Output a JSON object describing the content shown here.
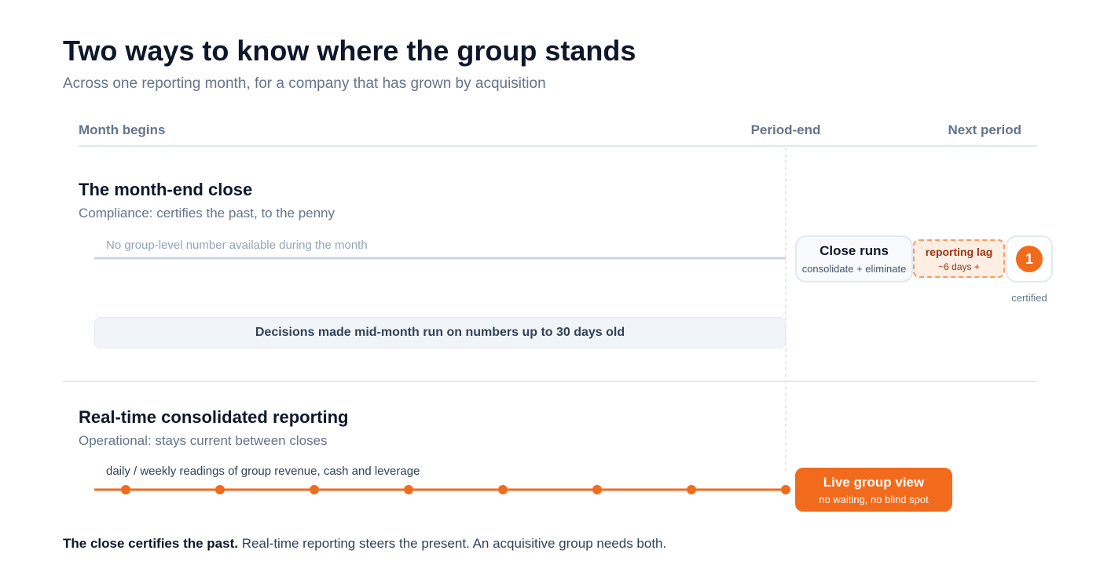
{
  "header": {
    "title": "Two ways to know where the group stands",
    "subtitle": "Across one reporting month, for a company that has grown by acquisition"
  },
  "timeline": {
    "labels": [
      "Month begins",
      "Period-end",
      "Next period"
    ]
  },
  "rows": [
    {
      "title": "The month-end close",
      "subtitle": "Compliance: certifies the past, to the penny",
      "track_label": "No group-level number available during the month",
      "callout": "Decisions made mid-month run on numbers up to 30 days old",
      "close_box": {
        "title": "Close runs",
        "detail": "consolidate + eliminate"
      },
      "lag": {
        "title": "reporting lag",
        "detail": "~6 days +"
      },
      "badge": "1",
      "badge_caption": "certified"
    },
    {
      "title": "Real-time consolidated reporting",
      "subtitle": "Operational: stays current between closes",
      "track_label": "daily / weekly readings of group revenue, cash and leverage",
      "live_box": {
        "title": "Live group view",
        "detail": "no waiting, no blind spot"
      }
    }
  ],
  "footer": {
    "lead": "The close certifies the past.",
    "rest": "Real-time reporting steers the present. An acquisitive group needs both."
  }
}
